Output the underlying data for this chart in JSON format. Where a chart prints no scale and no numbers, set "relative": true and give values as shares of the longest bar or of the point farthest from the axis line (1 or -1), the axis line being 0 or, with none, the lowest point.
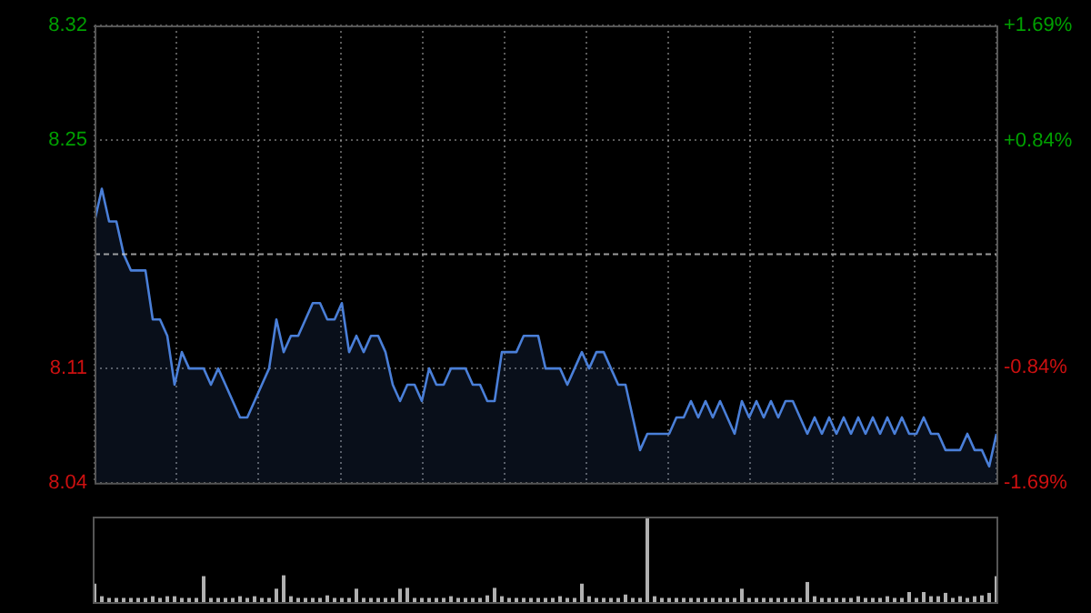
{
  "chart_data": [
    {
      "type": "area",
      "color": "#4a7fd8",
      "grid": true,
      "marker": "none",
      "legend": false,
      "tick_labels": "y",
      "categories": [
        null,
        null,
        null,
        null,
        null,
        null,
        null,
        null,
        null,
        null,
        null,
        null,
        null,
        null,
        null,
        null,
        null,
        null,
        null,
        null,
        null,
        null,
        null,
        null,
        null,
        null,
        null,
        null,
        null,
        null,
        null,
        null,
        null,
        null,
        null,
        null,
        null,
        null,
        null,
        null,
        null,
        null,
        null,
        null,
        null,
        null,
        null,
        null,
        null,
        null,
        null,
        null,
        null,
        null,
        null,
        null,
        null,
        null,
        null,
        null,
        null,
        null,
        null,
        null,
        null,
        null,
        null,
        null,
        null,
        null,
        null,
        null,
        null,
        null,
        null,
        null,
        null,
        null,
        null,
        null,
        null,
        null,
        null,
        null,
        null,
        null,
        null,
        null,
        null,
        null,
        null,
        null,
        null,
        null,
        null,
        null,
        null,
        null,
        null,
        null,
        null,
        null,
        null,
        null,
        null,
        null,
        null,
        null,
        null,
        null,
        null,
        null,
        null,
        null,
        null,
        null,
        null,
        null,
        null,
        null,
        null,
        null,
        null,
        null,
        null
      ],
      "values": [
        8.2,
        8.22,
        8.2,
        8.2,
        8.18,
        8.17,
        8.17,
        8.17,
        8.14,
        8.14,
        8.13,
        8.1,
        8.12,
        8.11,
        8.11,
        8.11,
        8.1,
        8.11,
        8.1,
        8.09,
        8.08,
        8.08,
        8.09,
        8.1,
        8.11,
        8.14,
        8.12,
        8.13,
        8.13,
        8.14,
        8.15,
        8.15,
        8.14,
        8.14,
        8.15,
        8.12,
        8.13,
        8.12,
        8.13,
        8.13,
        8.12,
        8.1,
        8.09,
        8.1,
        8.1,
        8.09,
        8.11,
        8.1,
        8.1,
        8.11,
        8.11,
        8.11,
        8.1,
        8.1,
        8.09,
        8.09,
        8.12,
        8.12,
        8.12,
        8.13,
        8.13,
        8.13,
        8.11,
        8.11,
        8.11,
        8.1,
        8.11,
        8.12,
        8.11,
        8.12,
        8.12,
        8.11,
        8.1,
        8.1,
        8.08,
        8.06,
        8.07,
        8.07,
        8.07,
        8.07,
        8.08,
        8.08,
        8.09,
        8.08,
        8.09,
        8.08,
        8.09,
        8.08,
        8.07,
        8.09,
        8.08,
        8.09,
        8.08,
        8.09,
        8.08,
        8.09,
        8.09,
        8.08,
        8.07,
        8.08,
        8.07,
        8.08,
        8.07,
        8.08,
        8.07,
        8.08,
        8.07,
        8.08,
        8.07,
        8.08,
        8.07,
        8.08,
        8.07,
        8.07,
        8.08,
        8.07,
        8.07,
        8.06,
        8.06,
        8.06,
        8.07,
        8.06,
        8.06,
        8.05,
        8.07
      ],
      "ylim": [
        8.04,
        8.32
      ],
      "yticks": [
        8.04,
        8.11,
        8.25,
        8.32
      ],
      "y2lim": [
        -1.69,
        1.69
      ],
      "y2ticks": [
        {
          "value": -1.69,
          "label": "-1.69%"
        },
        {
          "value": -0.84,
          "label": "-0.84%"
        },
        {
          "value": 0.84,
          "label": "+0.84%"
        },
        {
          "value": 1.69,
          "label": "+1.69%"
        }
      ],
      "ref_lines": [
        {
          "axis": "y",
          "value": 8.18
        }
      ]
    },
    {
      "type": "bar",
      "relative": true,
      "color": "#b0b0b0",
      "grid": false,
      "legend": false,
      "tick_labels": false,
      "categories": [
        null,
        null,
        null,
        null,
        null,
        null,
        null,
        null,
        null,
        null,
        null,
        null,
        null,
        null,
        null,
        null,
        null,
        null,
        null,
        null,
        null,
        null,
        null,
        null,
        null,
        null,
        null,
        null,
        null,
        null,
        null,
        null,
        null,
        null,
        null,
        null,
        null,
        null,
        null,
        null,
        null,
        null,
        null,
        null,
        null,
        null,
        null,
        null,
        null,
        null,
        null,
        null,
        null,
        null,
        null,
        null,
        null,
        null,
        null,
        null,
        null,
        null,
        null,
        null,
        null,
        null,
        null,
        null,
        null,
        null,
        null,
        null,
        null,
        null,
        null,
        null,
        null,
        null,
        null,
        null,
        null,
        null,
        null,
        null,
        null,
        null,
        null,
        null,
        null,
        null,
        null,
        null,
        null,
        null,
        null,
        null,
        null,
        null,
        null,
        null,
        null,
        null,
        null,
        null,
        null,
        null,
        null,
        null,
        null,
        null,
        null,
        null,
        null,
        null,
        null,
        null,
        null,
        null,
        null,
        null,
        null,
        null,
        null,
        null,
        null
      ],
      "values": [
        0.22,
        0.07,
        0.05,
        0.05,
        0.05,
        0.05,
        0.05,
        0.05,
        0.07,
        0.05,
        0.07,
        0.07,
        0.05,
        0.05,
        0.05,
        0.31,
        0.05,
        0.05,
        0.05,
        0.05,
        0.07,
        0.05,
        0.07,
        0.05,
        0.05,
        0.16,
        0.32,
        0.07,
        0.05,
        0.05,
        0.05,
        0.05,
        0.08,
        0.05,
        0.05,
        0.05,
        0.16,
        0.05,
        0.05,
        0.05,
        0.05,
        0.05,
        0.16,
        0.17,
        0.05,
        0.05,
        0.05,
        0.05,
        0.05,
        0.07,
        0.05,
        0.05,
        0.05,
        0.05,
        0.08,
        0.17,
        0.07,
        0.05,
        0.05,
        0.05,
        0.05,
        0.05,
        0.05,
        0.05,
        0.07,
        0.05,
        0.05,
        0.22,
        0.07,
        0.05,
        0.05,
        0.05,
        0.05,
        0.09,
        0.05,
        0.05,
        1,
        0.07,
        0.05,
        0.05,
        0.05,
        0.05,
        0.05,
        0.05,
        0.05,
        0.05,
        0.05,
        0.05,
        0.05,
        0.16,
        0.05,
        0.05,
        0.05,
        0.05,
        0.05,
        0.05,
        0.05,
        0.05,
        0.24,
        0.07,
        0.05,
        0.05,
        0.05,
        0.05,
        0.05,
        0.07,
        0.05,
        0.05,
        0.05,
        0.07,
        0.05,
        0.05,
        0.12,
        0.05,
        0.12,
        0.07,
        0.07,
        0.11,
        0.05,
        0.07,
        0.05,
        0.07,
        0.08,
        0.11,
        0.31
      ]
    }
  ]
}
